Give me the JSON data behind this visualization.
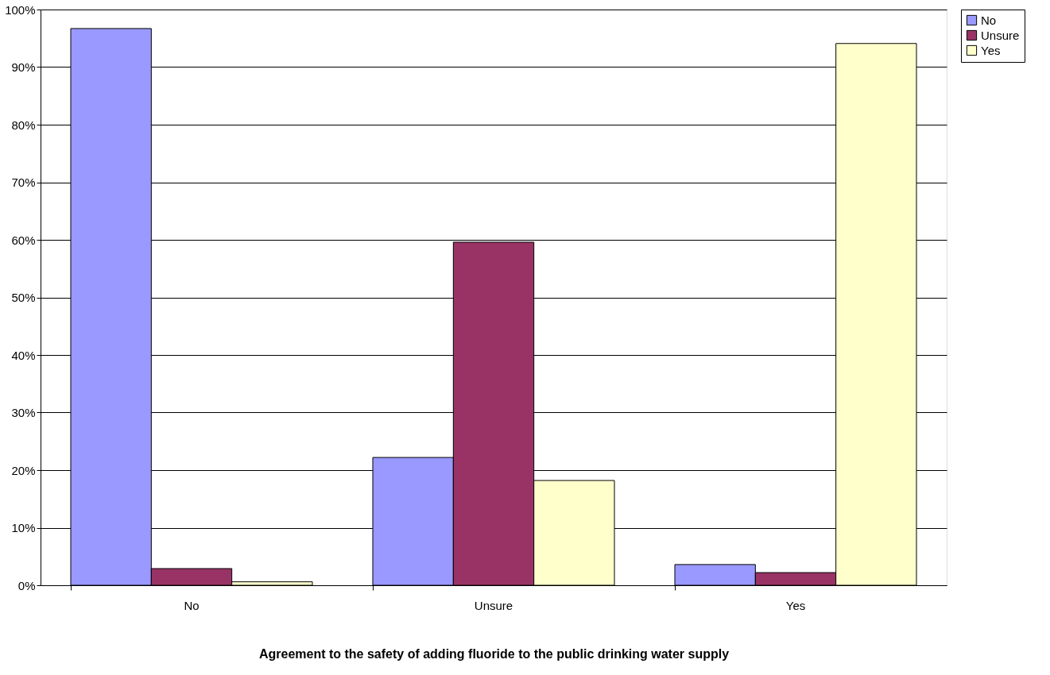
{
  "chart_data": {
    "type": "bar",
    "xlabel": "Agreement to the safety of adding fluoride to the public drinking water supply",
    "categories": [
      "No",
      "Unsure",
      "Yes"
    ],
    "series": [
      {
        "name": "No",
        "color": "#9999ff",
        "values": [
          96.7,
          22.2,
          3.6
        ]
      },
      {
        "name": "Unsure",
        "color": "#993366",
        "values": [
          2.9,
          59.6,
          2.2
        ]
      },
      {
        "name": "Yes",
        "color": "#ffffcc",
        "values": [
          0.6,
          18.2,
          94.1
        ]
      }
    ],
    "ylim": [
      0,
      100
    ],
    "yticks": [
      {
        "value": 0,
        "label": "0%"
      },
      {
        "value": 10,
        "label": "10%"
      },
      {
        "value": 20,
        "label": "20%"
      },
      {
        "value": 30,
        "label": "30%"
      },
      {
        "value": 40,
        "label": "40%"
      },
      {
        "value": 50,
        "label": "50%"
      },
      {
        "value": 60,
        "label": "60%"
      },
      {
        "value": 70,
        "label": "70%"
      },
      {
        "value": 80,
        "label": "80%"
      },
      {
        "value": 90,
        "label": "90%"
      },
      {
        "value": 100,
        "label": "100%"
      }
    ],
    "grid": "y",
    "legend": "right"
  }
}
